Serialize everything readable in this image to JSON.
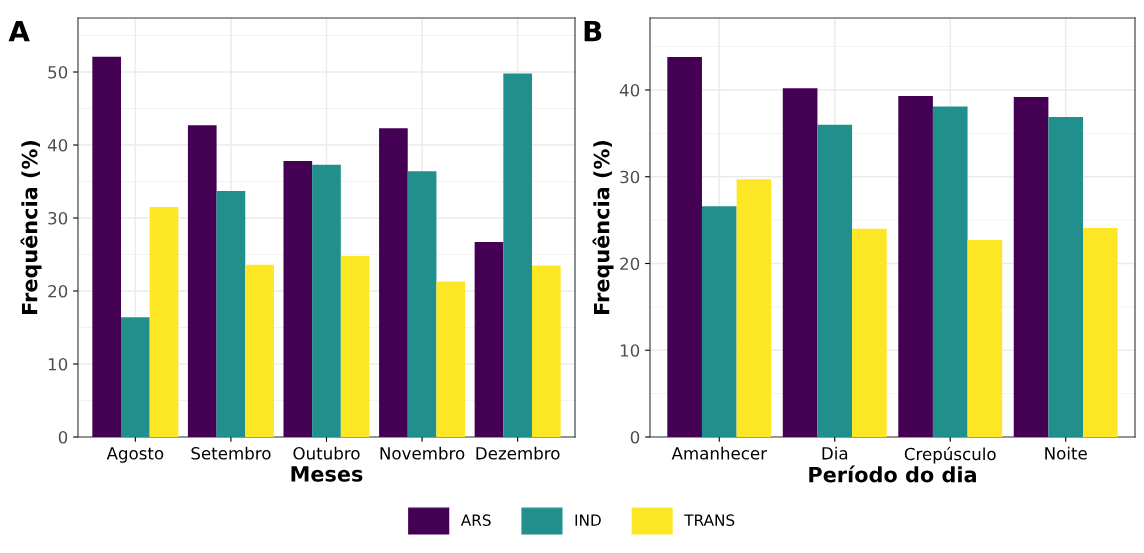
{
  "chart_data": [
    {
      "type": "bar",
      "title": "A",
      "xlabel": "Meses",
      "ylabel": "Frequência (%)",
      "categories": [
        "Agosto",
        "Setembro",
        "Outubro",
        "Novembro",
        "Dezembro"
      ],
      "series": [
        {
          "name": "ARS",
          "color": "#440154",
          "values": [
            52.1,
            42.7,
            37.8,
            42.3,
            26.7
          ]
        },
        {
          "name": "IND",
          "color": "#21908c",
          "values": [
            16.4,
            33.7,
            37.3,
            36.4,
            49.8
          ]
        },
        {
          "name": "TRANS",
          "color": "#fde725",
          "values": [
            31.5,
            23.6,
            24.8,
            21.3,
            23.5
          ]
        }
      ],
      "ylim": [
        0,
        57.4
      ],
      "yticks": [
        0,
        10,
        20,
        30,
        40,
        50
      ],
      "grid": true,
      "legend": "bottom"
    },
    {
      "type": "bar",
      "title": "B",
      "xlabel": "Período do dia",
      "ylabel": "Frequência (%)",
      "categories": [
        "Amanhecer",
        "Dia",
        "Crepúsculo",
        "Noite"
      ],
      "series": [
        {
          "color": "#440154",
          "values": [
            43.8,
            40.2,
            39.3,
            39.2
          ]
        },
        {
          "color": "#21908c",
          "values": [
            26.6,
            36.0,
            38.1,
            36.9
          ]
        },
        {
          "color": "#fde725",
          "values": [
            29.7,
            24.0,
            22.7,
            24.1
          ]
        }
      ],
      "ylim": [
        0,
        48.3
      ],
      "yticks": [
        0,
        10,
        20,
        30,
        40
      ],
      "grid": true
    }
  ]
}
